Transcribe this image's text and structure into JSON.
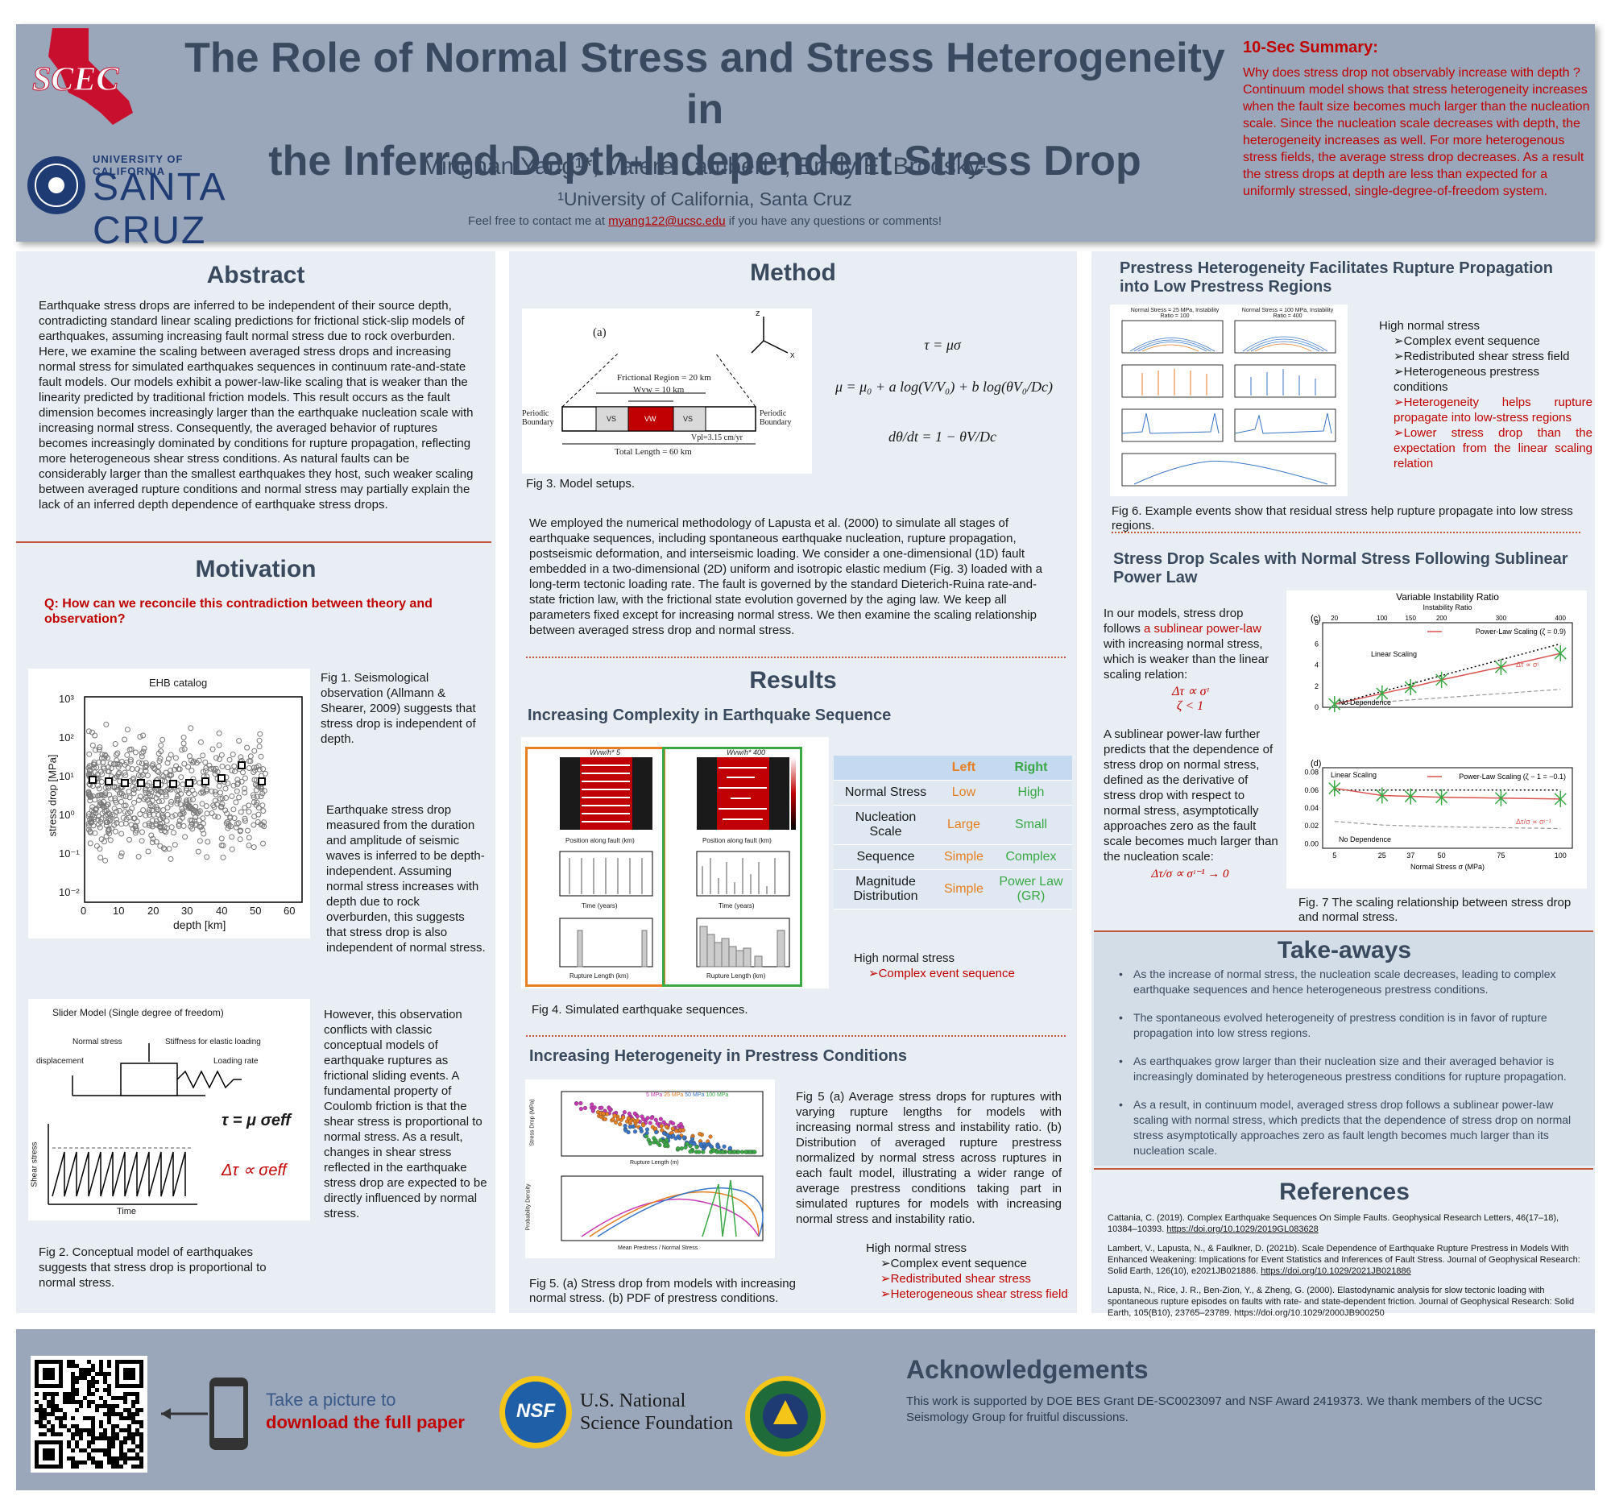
{
  "header": {
    "title_line1": "The Role of Normal Stress and Stress Heterogeneity in",
    "title_line2": "the Inferred Depth-Independent Stress Drop",
    "authors": "Minghan Yang¹*, Valere Lambert ¹, Emily E. Brodsky¹",
    "affiliation": "¹University of California, Santa Cruz",
    "contact_before": "Feel free to contact me at ",
    "contact_email": "myang122@ucsc.edu",
    "contact_after": " if you have any questions or comments!",
    "scec_logo": "SCEC",
    "uc_line1": "UNIVERSITY OF CALIFORNIA",
    "uc_line2": "SANTA CRUZ"
  },
  "summary": {
    "title": "10-Sec Summary:",
    "text": "Why does stress drop not observably increase with depth ? Continuum model shows that stress heterogeneity increases when the fault size becomes much larger than the nucleation scale. Since the nucleation scale decreases with depth, the heterogeneity increases as well. For more heterogenous stress fields, the average stress drop decreases. As a result the stress drops at depth are less than expected for a uniformly stressed, single-degree-of-freedom system."
  },
  "abstract": {
    "title": "Abstract",
    "text": "Earthquake stress drops are inferred to be independent of their source depth, contradicting standard linear scaling predictions for frictional stick-slip models of earthquakes, assuming increasing fault normal stress due to rock overburden. Here, we examine the scaling between averaged stress drops and increasing normal stress for simulated earthquakes sequences in continuum rate-and-state fault models. Our models exhibit a power-law-like scaling that is weaker than the linearity predicted by traditional friction models. This result occurs as the fault dimension becomes increasingly larger than the earthquake nucleation scale with increasing normal stress. Consequently, the averaged behavior of ruptures becomes increasingly dominated by conditions for rupture propagation, reflecting more heterogeneous shear stress conditions. As natural faults can be considerably larger than the smallest earthquakes they host, such weaker scaling between averaged rupture conditions and normal stress may partially explain the lack of an inferred depth dependence of earthquake stress drops."
  },
  "motivation": {
    "title": "Motivation",
    "question": "Q: How can we reconcile this contradiction between theory and observation?",
    "fig1_caption": "Fig 1. Seismological observation (Allmann & Shearer, 2009) suggests that stress drop is independent of depth.",
    "text2": "Earthquake stress drop measured from the duration and amplitude of seismic waves is inferred to be depth-independent. Assuming normal stress increases with depth due to rock overburden, this suggests that stress drop is also independent of normal stress.",
    "text3": "However, this observation conflicts with classic conceptual models of earthquake ruptures as frictional sliding events. A fundamental property of Coulomb friction is that the shear stress is proportional to normal stress. As a result, changes in shear stress reflected in the earthquake stress drop are expected to be directly influenced by normal stress.",
    "fig2_caption": "Fig 2. Conceptual model of earthquakes suggests that stress drop is proportional to normal stress.",
    "fig1": {
      "title": "EHB catalog",
      "ylabel": "stress drop [MPa]",
      "xlabel": "depth [km]",
      "xticks": [
        "0",
        "10",
        "20",
        "30",
        "40",
        "50",
        "60"
      ],
      "yticks": [
        "10³",
        "10²",
        "10¹",
        "10⁰",
        "10⁻¹",
        "10⁻²"
      ]
    },
    "fig2": {
      "title": "Slider Model (Single degree of freedom)",
      "normal": "Normal stress",
      "stiff": "Stiffness for elastic loading",
      "disp": "displacement",
      "rate": "Loading rate",
      "eq1": "τ = μ σeff",
      "eq2": "Δτ ∝ σeff",
      "ylab": "Shear stress",
      "xlab": "Time"
    }
  },
  "method": {
    "title": "Method",
    "fig3_caption": "Fig 3. Model setups.",
    "fig3": {
      "label": "(a)",
      "region": "Frictional Region = 20 km",
      "wvw": "Wvw = 10 km",
      "vs": "VS",
      "vw": "VW",
      "periodic": "Periodic Boundary",
      "vpl": "Vpl=3.15 cm/yr",
      "total": "Total Length = 60 km",
      "z": "z",
      "x": "x"
    },
    "eq1": "τ = μσ",
    "eq2": "μ = μ₀ + a log(V/V₀) + b log(θV₀/Dc)",
    "eq3": "dθ/dt = 1 − θV/Dc",
    "text": "We employed the numerical methodology of Lapusta et al. (2000) to simulate all stages of earthquake sequences, including spontaneous earthquake nucleation, rupture propagation, postseismic deformation, and interseismic loading. We consider a one-dimensional (1D) fault embedded in a two-dimensional (2D) uniform and isotropic elastic medium (Fig. 3) loaded with a long-term tectonic loading rate. The fault is governed by the standard Dieterich-Ruina rate-and-state friction law, with the frictional state evolution governed by the aging law. We keep all parameters fixed except for increasing normal stress. We then examine the scaling relationship between averaged stress drop and normal stress."
  },
  "results": {
    "title": "Results",
    "sub1": "Increasing Complexity in Earthquake Sequence",
    "fig4_caption": "Fig 4. Simulated earthquake sequences.",
    "table": {
      "head": [
        "",
        "Left",
        "Right"
      ],
      "rows": [
        [
          "Normal Stress",
          "Low",
          "High"
        ],
        [
          "Nucleation Scale",
          "Large",
          "Small"
        ],
        [
          "Sequence",
          "Simple",
          "Complex"
        ],
        [
          "Magnitude Distribution",
          "Simple",
          "Power Law (GR)"
        ]
      ]
    },
    "hs1_title": "High normal stress",
    "hs1_items": [
      "Complex event sequence"
    ],
    "sub2": "Increasing Heterogeneity in Prestress Conditions",
    "fig5_text": "Fig 5 (a) Average stress drops for ruptures with varying rupture lengths for models with increasing normal stress and instability ratio. (b) Distribution of averaged rupture prestress normalized by normal stress across ruptures in each fault model, illustrating a wider range of average prestress conditions taking part in simulated ruptures for models with increasing normal stress and instability ratio.",
    "fig5_caption": "Fig 5. (a) Stress drop from models with increasing normal stress. (b) PDF of prestress conditions.",
    "hs2_title": "High normal stress",
    "hs2_items": [
      "Complex event sequence",
      "Redistributed shear stress",
      "Heterogeneous shear stress field"
    ],
    "fig4": {
      "a_title": "Wvw/h* 5",
      "c_title": "Wvw/h* 400",
      "pos": "Position along fault (km)",
      "time": "Time (years)",
      "rup": "Rupture Length(km)",
      "count": "Number of Events",
      "rl": "Rupture Length (km)"
    },
    "fig5": {
      "legend": [
        "5 MPa",
        "25 MPa",
        "50 MPa",
        "100 MPa"
      ],
      "ylab_a": "Stress Drop (MPa)",
      "xlab_a": "Rupture Length (m)",
      "ylab_b": "Probability Density",
      "xlab_b": "Mean Prestress / Normal Stress"
    }
  },
  "prestress": {
    "title": "Prestress Heterogeneity Facilitates Rupture Propagation into Low Prestress Regions",
    "bullets_title": "High normal stress",
    "items": [
      "Complex event sequence",
      "Redistributed shear stress field",
      "Heterogeneous prestress conditions"
    ],
    "items_red": [
      "Heterogeneity helps rupture propagate into low-stress regions",
      "Lower stress drop than the expectation from the linear scaling relation"
    ],
    "fig6_caption": "Fig 6. Example events show that residual stress help rupture propagate into low stress regions.",
    "fig6": {
      "t1": "Normal Stress = 25 MPa, Instability Ratio = 100",
      "t2": "Normal Stress = 100 MPa, Instability Ratio = 400"
    }
  },
  "scaling": {
    "title": "Stress Drop Scales with Normal Stress Following Sublinear Power Law",
    "t1a": "In our models, stress drop follows ",
    "t1red": "a sublinear power-law",
    "t1b": " with increasing normal stress, which is weaker than the linear scaling relation:",
    "eqA": "Δτ ∝ σᶦ",
    "eqB": "ζ < 1",
    "t2": "A sublinear power-law further predicts that the dependence of stress drop on normal stress, defined as the derivative of stress drop with respect to normal stress, asymptotically approaches zero as the fault scale becomes much larger than the nucleation scale:",
    "eqC": "Δτ/σ ∝ σᶦ⁻¹ → 0",
    "fig7_caption": "Fig. 7 The scaling relationship between stress drop and normal stress."
  },
  "chart_data": [
    {
      "type": "scatter",
      "panel": "(c)",
      "title": "Variable Instability Ratio",
      "subtitle": "Instability Ratio",
      "top_ticks": [
        "20",
        "100",
        "150",
        "200",
        "300",
        "400"
      ],
      "x": [
        5,
        25,
        37,
        50,
        75,
        100
      ],
      "series": [
        {
          "name": "Power-Law Scaling (ζ = 0.9)",
          "values": [
            0.3,
            1.3,
            1.9,
            2.6,
            3.8,
            5.1
          ]
        }
      ],
      "linear_scaling": [
        0.3,
        1.5,
        2.2,
        3.0,
        4.5,
        6.0
      ],
      "no_dependence": [
        0.3,
        0.5,
        0.7,
        0.9,
        1.3,
        1.7
      ],
      "annotation_linear": "Linear Scaling",
      "annotation_none": "No Dependence",
      "annotation_eq": "Δτ ∝ σᶦ",
      "ylim": [
        0,
        8
      ],
      "yticks": [
        0,
        2,
        4,
        6,
        8
      ],
      "xlim": [
        0,
        105
      ]
    },
    {
      "type": "scatter",
      "panel": "(d)",
      "x": [
        5,
        25,
        37,
        50,
        75,
        100
      ],
      "series": [
        {
          "name": "Power-Law Scaling (ζ − 1 = −0.1)",
          "values": [
            0.062,
            0.054,
            0.053,
            0.052,
            0.051,
            0.05
          ]
        }
      ],
      "linear_scaling": [
        0.06,
        0.06,
        0.06,
        0.06,
        0.06,
        0.06
      ],
      "no_dependence": [
        0.025,
        0.021,
        0.02,
        0.019,
        0.018,
        0.017
      ],
      "annotation_linear": "Linear Scaling",
      "annotation_none": "No Dependence",
      "annotation_eq": "Δτ/σ ∝ σᶦ⁻¹",
      "xlabel": "Normal Stress σ (MPa)",
      "xticks": [
        5,
        25,
        37,
        50,
        75,
        100
      ],
      "ylim": [
        -0.005,
        0.085
      ],
      "yticks": [
        0.0,
        0.02,
        0.04,
        0.06,
        0.08
      ],
      "xlim": [
        0,
        105
      ]
    }
  ],
  "takeaways": {
    "title": "Take-aways",
    "items": [
      "As the increase of normal stress, the nucleation scale decreases, leading to complex earthquake sequences and hence heterogeneous prestress conditions.",
      "The spontaneous evolved heterogeneity of prestress condition is in favor of rupture propagation into low stress regions.",
      "As earthquakes grow larger than their nucleation size and their averaged behavior is increasingly dominated by heterogeneous prestress conditions for rupture propagation.",
      "As a result, in continuum model, averaged stress drop follows a sublinear power-law scaling with normal stress, which predicts that the dependence of stress drop on normal stress asymptotically approaches zero as fault length becomes much larger than its nucleation scale."
    ]
  },
  "references": {
    "title": "References",
    "items": [
      {
        "text": "Cattania, C. (2019). Complex Earthquake Sequences On Simple Faults. Geophysical Research Letters, 46(17–18), 10384–10393. ",
        "link": "https://doi.org/10.1029/2019GL083628"
      },
      {
        "text": "Lambert, V., Lapusta, N., & Faulkner, D. (2021b). Scale Dependence of Earthquake Rupture Prestress in Models With Enhanced Weakening: Implications for Event Statistics and Inferences of Fault Stress. Journal of Geophysical Research: Solid Earth, 126(10), e2021JB021886. ",
        "link": "https://doi.org/10.1029/2021JB021886"
      },
      {
        "text": "Lapusta, N., Rice, J. R., Ben-Zion, Y., & Zheng, G. (2000). Elastodynamic analysis for slow tectonic loading with spontaneous rupture episodes on faults with rate- and state-dependent friction. Journal of Geophysical Research: Solid Earth, 105(B10), 23765–23789. https://doi.org/10.1029/2000JB900250",
        "link": ""
      }
    ]
  },
  "footer": {
    "take_picture": "Take a picture to",
    "download": "download the full paper",
    "nsf_line1": "U.S. National",
    "nsf_line2": "Science Foundation",
    "nsf_badge": "NSF",
    "ack_title": "Acknowledgements",
    "ack_text": "This work is supported by DOE BES Grant DE-SC0023097 and NSF Award 2419373. We thank members of the UCSC Seismology Group for fruitful discussions."
  },
  "colors": {
    "accent_red": "#c00000",
    "header_bg": "#9aa7bb",
    "panel_bg": "#e8eef3",
    "title_blue": "#3a4a5e",
    "orange": "#f5a623",
    "green": "#3aa845"
  }
}
